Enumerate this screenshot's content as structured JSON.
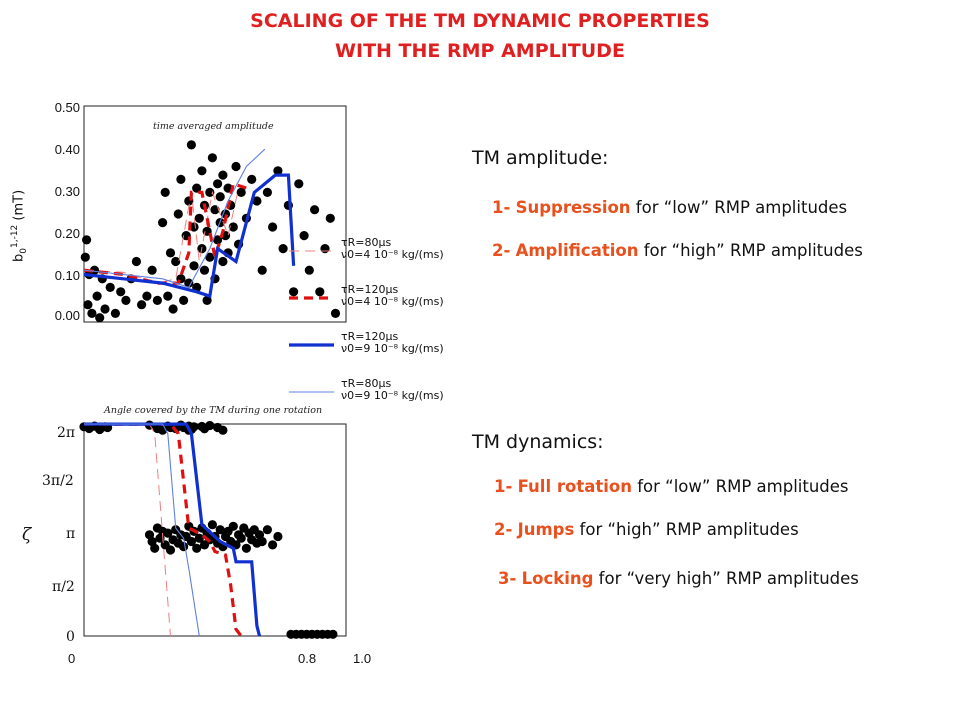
{
  "title": {
    "line1": "SCALING OF THE TM DYNAMIC PROPERTIES",
    "line2": "WITH THE RMP AMPLITUDE"
  },
  "legend": [
    {
      "tau": "τR=80μs",
      "nu": "ν0=4 10⁻⁸ kg/(ms)",
      "color": "#f08080",
      "style": "dashed-thin"
    },
    {
      "tau": "τR=120μs",
      "nu": "ν0=4 10⁻⁸ kg/(ms)",
      "color": "#e01010",
      "style": "dashed-thick"
    },
    {
      "tau": "τR=120μs",
      "nu": "ν0=9 10⁻⁸ kg/(ms)",
      "color": "#1030d0",
      "style": "solid-thick"
    },
    {
      "tau": "τR=80μs",
      "nu": "ν0=9 10⁻⁸ kg/(ms)",
      "color": "#6080e0",
      "style": "solid-thin"
    }
  ],
  "right": {
    "amp_title": "TM amplitude:",
    "amp_items": [
      {
        "num": "1-",
        "key": "Suppression",
        "rest": " for “low” RMP amplitudes"
      },
      {
        "num": "2-",
        "key": "Amplification",
        "rest": " for “high” RMP amplitudes"
      }
    ],
    "dyn_title": "TM dynamics:",
    "dyn_items": [
      {
        "num": "1-",
        "key": "Full rotation",
        "rest": " for “low” RMP amplitudes"
      },
      {
        "num": "2-",
        "key": "Jumps",
        "rest": " for “high” RMP amplitudes"
      },
      {
        "num": "3-",
        "key": "Locking",
        "rest": " for “very high” RMP amplitudes"
      }
    ]
  },
  "chart_data": [
    {
      "type": "scatter",
      "title": "time averaged amplitude",
      "ylabel": "b01,-12 (mT)",
      "ylabel_parts": {
        "base": "b",
        "sub": "0",
        "sup": "1,-12",
        "unit": "(mT)"
      },
      "ytick_labels": [
        "0.00",
        "0.10",
        "0.20",
        "0.30",
        "0.40",
        "0.50"
      ],
      "ylim": [
        0,
        0.5
      ],
      "xlim": [
        0,
        1.0
      ],
      "points": [
        [
          0.005,
          0.15
        ],
        [
          0.01,
          0.19
        ],
        [
          0.015,
          0.04
        ],
        [
          0.02,
          0.11
        ],
        [
          0.03,
          0.02
        ],
        [
          0.04,
          0.12
        ],
        [
          0.05,
          0.06
        ],
        [
          0.06,
          0.01
        ],
        [
          0.07,
          0.1
        ],
        [
          0.08,
          0.03
        ],
        [
          0.1,
          0.08
        ],
        [
          0.12,
          0.02
        ],
        [
          0.14,
          0.07
        ],
        [
          0.16,
          0.05
        ],
        [
          0.18,
          0.1
        ],
        [
          0.2,
          0.14
        ],
        [
          0.22,
          0.04
        ],
        [
          0.24,
          0.06
        ],
        [
          0.26,
          0.12
        ],
        [
          0.28,
          0.05
        ],
        [
          0.3,
          0.23
        ],
        [
          0.31,
          0.3
        ],
        [
          0.32,
          0.06
        ],
        [
          0.33,
          0.16
        ],
        [
          0.34,
          0.03
        ],
        [
          0.35,
          0.14
        ],
        [
          0.36,
          0.25
        ],
        [
          0.37,
          0.1
        ],
        [
          0.37,
          0.33
        ],
        [
          0.38,
          0.05
        ],
        [
          0.39,
          0.2
        ],
        [
          0.4,
          0.09
        ],
        [
          0.4,
          0.28
        ],
        [
          0.41,
          0.41
        ],
        [
          0.42,
          0.13
        ],
        [
          0.42,
          0.22
        ],
        [
          0.43,
          0.31
        ],
        [
          0.43,
          0.08
        ],
        [
          0.44,
          0.24
        ],
        [
          0.45,
          0.17
        ],
        [
          0.45,
          0.35
        ],
        [
          0.46,
          0.12
        ],
        [
          0.46,
          0.27
        ],
        [
          0.47,
          0.05
        ],
        [
          0.47,
          0.21
        ],
        [
          0.48,
          0.3
        ],
        [
          0.48,
          0.15
        ],
        [
          0.49,
          0.38
        ],
        [
          0.5,
          0.26
        ],
        [
          0.5,
          0.1
        ],
        [
          0.51,
          0.19
        ],
        [
          0.51,
          0.32
        ],
        [
          0.52,
          0.23
        ],
        [
          0.52,
          0.29
        ],
        [
          0.53,
          0.14
        ],
        [
          0.53,
          0.34
        ],
        [
          0.54,
          0.25
        ],
        [
          0.54,
          0.2
        ],
        [
          0.55,
          0.31
        ],
        [
          0.55,
          0.16
        ],
        [
          0.56,
          0.27
        ],
        [
          0.57,
          0.22
        ],
        [
          0.58,
          0.36
        ],
        [
          0.59,
          0.18
        ],
        [
          0.6,
          0.3
        ],
        [
          0.62,
          0.24
        ],
        [
          0.64,
          0.33
        ],
        [
          0.66,
          0.28
        ],
        [
          0.68,
          0.12
        ],
        [
          0.7,
          0.3
        ],
        [
          0.72,
          0.22
        ],
        [
          0.74,
          0.35
        ],
        [
          0.76,
          0.17
        ],
        [
          0.78,
          0.27
        ],
        [
          0.8,
          0.07
        ],
        [
          0.82,
          0.32
        ],
        [
          0.84,
          0.2
        ],
        [
          0.86,
          0.12
        ],
        [
          0.88,
          0.26
        ],
        [
          0.9,
          0.07
        ],
        [
          0.92,
          0.17
        ],
        [
          0.94,
          0.24
        ],
        [
          0.96,
          0.02
        ]
      ],
      "series": [
        {
          "x": [
            0,
            0.15,
            0.28,
            0.35,
            0.41,
            0.44,
            0.49,
            0.55,
            0.59
          ],
          "y": [
            0.12,
            0.115,
            0.09,
            0.1,
            0.3,
            0.14,
            0.3,
            0.2,
            0.31
          ],
          "color": "#f08080",
          "style": "dashed-thin"
        },
        {
          "x": [
            0,
            0.15,
            0.28,
            0.36,
            0.4,
            0.41,
            0.45,
            0.5,
            0.53,
            0.57,
            0.62
          ],
          "y": [
            0.12,
            0.11,
            0.09,
            0.09,
            0.16,
            0.3,
            0.3,
            0.15,
            0.21,
            0.32,
            0.31
          ],
          "color": "#e01010",
          "style": "dashed-thick"
        },
        {
          "x": [
            0,
            0.15,
            0.3,
            0.43,
            0.48,
            0.51,
            0.58,
            0.65,
            0.73,
            0.78,
            0.8
          ],
          "y": [
            0.11,
            0.1,
            0.09,
            0.07,
            0.06,
            0.17,
            0.14,
            0.3,
            0.34,
            0.34,
            0.13
          ],
          "color": "#1030d0",
          "style": "solid-thick"
        },
        {
          "x": [
            0,
            0.15,
            0.3,
            0.4,
            0.48,
            0.55,
            0.62,
            0.69
          ],
          "y": [
            0.12,
            0.11,
            0.1,
            0.08,
            0.17,
            0.28,
            0.36,
            0.4
          ],
          "color": "#6080e0",
          "style": "solid-thin"
        }
      ]
    },
    {
      "type": "scatter",
      "title": "Angle covered by the TM during one rotation",
      "ylabel": "ζ",
      "ytick_labels": [
        "0",
        "π/2",
        "π",
        "3π/2",
        "2π"
      ],
      "ylim": [
        0,
        6.2832
      ],
      "xlim": [
        0,
        1.0
      ],
      "xtick_labels": [
        "0",
        "0.8",
        "1.0"
      ],
      "xtick_values": [
        0,
        0.8,
        1.0
      ],
      "points": [
        [
          0.0,
          6.2
        ],
        [
          0.02,
          6.15
        ],
        [
          0.04,
          6.22
        ],
        [
          0.06,
          6.12
        ],
        [
          0.08,
          6.2
        ],
        [
          0.09,
          6.18
        ],
        [
          0.25,
          6.25
        ],
        [
          0.28,
          6.15
        ],
        [
          0.3,
          6.1
        ],
        [
          0.32,
          6.22
        ],
        [
          0.33,
          6.18
        ],
        [
          0.35,
          6.15
        ],
        [
          0.37,
          6.25
        ],
        [
          0.38,
          6.18
        ],
        [
          0.4,
          6.1
        ],
        [
          0.4,
          6.22
        ],
        [
          0.41,
          6.12
        ],
        [
          0.42,
          6.2
        ],
        [
          0.45,
          6.21
        ],
        [
          0.46,
          6.14
        ],
        [
          0.48,
          6.24
        ],
        [
          0.51,
          6.18
        ],
        [
          0.53,
          6.1
        ],
        [
          0.25,
          3.0
        ],
        [
          0.26,
          2.8
        ],
        [
          0.27,
          2.6
        ],
        [
          0.28,
          3.2
        ],
        [
          0.29,
          2.9
        ],
        [
          0.3,
          3.1
        ],
        [
          0.31,
          2.7
        ],
        [
          0.32,
          3.05
        ],
        [
          0.33,
          2.55
        ],
        [
          0.34,
          2.85
        ],
        [
          0.35,
          3.15
        ],
        [
          0.36,
          2.75
        ],
        [
          0.37,
          3.0
        ],
        [
          0.38,
          2.65
        ],
        [
          0.39,
          2.95
        ],
        [
          0.4,
          3.25
        ],
        [
          0.41,
          2.8
        ],
        [
          0.42,
          3.1
        ],
        [
          0.43,
          2.6
        ],
        [
          0.44,
          2.9
        ],
        [
          0.45,
          3.2
        ],
        [
          0.46,
          2.7
        ],
        [
          0.47,
          3.05
        ],
        [
          0.48,
          2.85
        ],
        [
          0.49,
          3.3
        ],
        [
          0.5,
          2.95
        ],
        [
          0.51,
          2.75
        ],
        [
          0.52,
          3.15
        ],
        [
          0.53,
          2.65
        ],
        [
          0.54,
          2.95
        ],
        [
          0.55,
          3.1
        ],
        [
          0.56,
          2.8
        ],
        [
          0.57,
          3.25
        ],
        [
          0.58,
          2.7
        ],
        [
          0.59,
          3.0
        ],
        [
          0.6,
          2.9
        ],
        [
          0.61,
          3.2
        ],
        [
          0.62,
          2.6
        ],
        [
          0.63,
          3.05
        ],
        [
          0.64,
          2.85
        ],
        [
          0.65,
          3.15
        ],
        [
          0.66,
          2.75
        ],
        [
          0.67,
          3.0
        ],
        [
          0.68,
          2.8
        ],
        [
          0.7,
          3.15
        ],
        [
          0.72,
          2.7
        ],
        [
          0.74,
          2.95
        ],
        [
          0.79,
          0.05
        ],
        [
          0.81,
          0.05
        ],
        [
          0.83,
          0.05
        ],
        [
          0.85,
          0.05
        ],
        [
          0.87,
          0.05
        ],
        [
          0.89,
          0.05
        ],
        [
          0.91,
          0.05
        ],
        [
          0.93,
          0.05
        ],
        [
          0.95,
          0.05
        ]
      ],
      "series": [
        {
          "x": [
            0,
            0.25,
            0.27,
            0.33
          ],
          "y": [
            6.28,
            6.28,
            6.0,
            0
          ],
          "color": "#f08080",
          "style": "dashed-thin"
        },
        {
          "x": [
            0,
            0.33,
            0.36,
            0.4,
            0.45,
            0.48,
            0.5,
            0.54,
            0.56,
            0.58,
            0.6
          ],
          "y": [
            6.28,
            6.28,
            6.0,
            3.2,
            3.0,
            2.8,
            2.5,
            2.4,
            1.5,
            0.2,
            0
          ],
          "color": "#e01010",
          "style": "dashed-thick"
        },
        {
          "x": [
            0,
            0.39,
            0.41,
            0.45,
            0.52,
            0.57,
            0.58,
            0.62,
            0.64,
            0.66,
            0.67
          ],
          "y": [
            6.28,
            6.28,
            6.0,
            3.3,
            2.8,
            2.6,
            2.2,
            2.2,
            2.2,
            0.3,
            0
          ],
          "color": "#1030d0",
          "style": "solid-thick"
        },
        {
          "x": [
            0,
            0.3,
            0.32,
            0.35,
            0.38,
            0.4,
            0.44
          ],
          "y": [
            6.28,
            6.28,
            6.0,
            3.2,
            2.9,
            2.0,
            0
          ],
          "color": "#6080e0",
          "style": "solid-thin"
        }
      ]
    }
  ]
}
